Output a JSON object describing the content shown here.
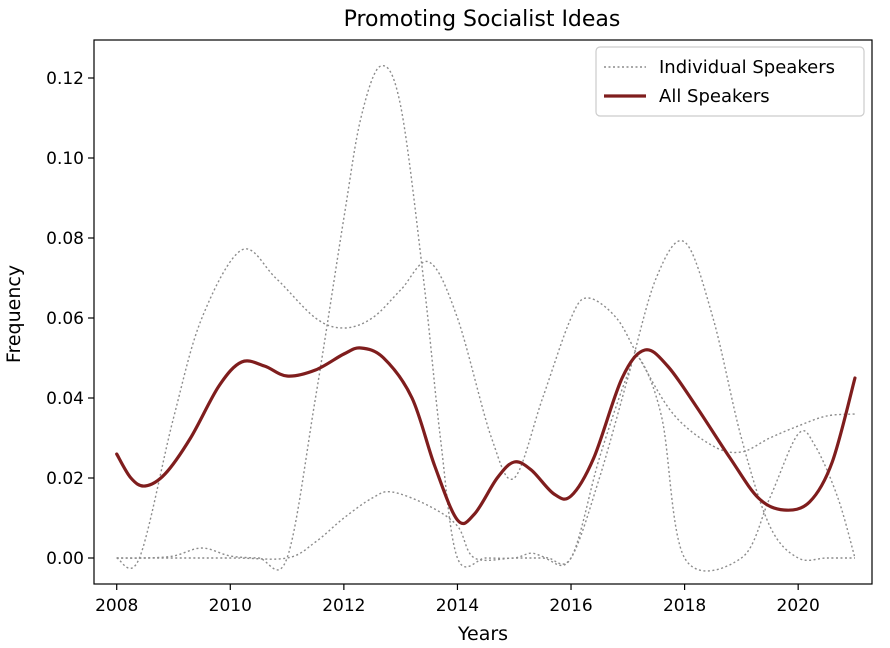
{
  "chart_data": {
    "type": "line",
    "title": "Promoting Socialist Ideas",
    "xlabel": "Years",
    "ylabel": "Frequency",
    "xlim": [
      2007.6,
      2021.3
    ],
    "ylim": [
      -0.0065,
      0.1295
    ],
    "xticks": [
      2008,
      2010,
      2012,
      2014,
      2016,
      2018,
      2020
    ],
    "xtick_labels": [
      "2008",
      "2010",
      "2012",
      "2014",
      "2016",
      "2018",
      "2020"
    ],
    "yticks": [
      0.0,
      0.02,
      0.04,
      0.06,
      0.08,
      0.1,
      0.12
    ],
    "ytick_labels": [
      "0.00",
      "0.02",
      "0.04",
      "0.06",
      "0.08",
      "0.10",
      "0.12"
    ],
    "grid": false,
    "legend": {
      "position": "top-right",
      "entries": [
        "Individual Speakers",
        "All Speakers"
      ]
    },
    "series": [
      {
        "name": "Individual Speakers",
        "style": "dotted",
        "color": "#8c8c8c",
        "points": [
          [
            2008,
            0.0
          ],
          [
            2008.5,
            0.0
          ],
          [
            2009,
            0.0005
          ],
          [
            2009.5,
            0.0025
          ],
          [
            2010,
            0.0005
          ],
          [
            2010.5,
            0.0
          ],
          [
            2011,
            0.0
          ],
          [
            2011.5,
            0.04
          ],
          [
            2012,
            0.085
          ],
          [
            2012.3,
            0.11
          ],
          [
            2012.65,
            0.123
          ],
          [
            2013,
            0.113
          ],
          [
            2013.4,
            0.07
          ],
          [
            2013.7,
            0.03
          ],
          [
            2014,
            0.0
          ],
          [
            2014.5,
            0.0
          ],
          [
            2015,
            0.0
          ],
          [
            2015.3,
            0.0012
          ],
          [
            2015.6,
            0.0
          ],
          [
            2016,
            0.0
          ],
          [
            2016.5,
            0.02
          ],
          [
            2017,
            0.045
          ],
          [
            2017.5,
            0.07
          ],
          [
            2018,
            0.079
          ],
          [
            2018.5,
            0.06
          ],
          [
            2019,
            0.03
          ],
          [
            2019.5,
            0.008
          ],
          [
            2020,
            0.0
          ],
          [
            2020.5,
            0.0
          ],
          [
            2021,
            0.0
          ]
        ]
      },
      {
        "name": "",
        "style": "dotted",
        "color": "#8c8c8c",
        "points": [
          [
            2008,
            0.0
          ],
          [
            2008.4,
            0.0
          ],
          [
            2009,
            0.035
          ],
          [
            2009.5,
            0.06
          ],
          [
            2010.2,
            0.077
          ],
          [
            2010.8,
            0.07
          ],
          [
            2011.5,
            0.06
          ],
          [
            2012,
            0.0575
          ],
          [
            2012.5,
            0.06
          ],
          [
            2013,
            0.067
          ],
          [
            2013.5,
            0.074
          ],
          [
            2014,
            0.06
          ],
          [
            2014.6,
            0.03
          ],
          [
            2015,
            0.02
          ],
          [
            2015.5,
            0.04
          ],
          [
            2016,
            0.06
          ],
          [
            2016.3,
            0.065
          ],
          [
            2016.8,
            0.06
          ],
          [
            2017.2,
            0.05
          ],
          [
            2017.8,
            0.036
          ],
          [
            2018.5,
            0.028
          ],
          [
            2019,
            0.0265
          ],
          [
            2019.5,
            0.03
          ],
          [
            2020,
            0.033
          ],
          [
            2020.5,
            0.0355
          ],
          [
            2021,
            0.036
          ]
        ]
      },
      {
        "name": "",
        "style": "dotted",
        "color": "#8c8c8c",
        "points": [
          [
            2008,
            0.0
          ],
          [
            2010,
            0.0
          ],
          [
            2011,
            0.0
          ],
          [
            2011.5,
            0.004
          ],
          [
            2012,
            0.01
          ],
          [
            2012.5,
            0.015
          ],
          [
            2012.85,
            0.0165
          ],
          [
            2013.5,
            0.013
          ],
          [
            2014,
            0.008
          ],
          [
            2014.3,
            0.0
          ],
          [
            2015,
            0.0
          ],
          [
            2015.5,
            0.0
          ],
          [
            2016,
            0.0
          ],
          [
            2016.5,
            0.025
          ],
          [
            2017,
            0.046
          ],
          [
            2017.2,
            0.05
          ],
          [
            2017.6,
            0.035
          ],
          [
            2018,
            0.0
          ],
          [
            2019,
            0.0
          ],
          [
            2019.5,
            0.015
          ],
          [
            2020,
            0.031
          ],
          [
            2020.3,
            0.028
          ],
          [
            2020.7,
            0.015
          ],
          [
            2021,
            0.0
          ]
        ]
      },
      {
        "name": "All Speakers",
        "style": "solid",
        "color": "#7f1d1d",
        "points": [
          [
            2008,
            0.026
          ],
          [
            2008.25,
            0.02
          ],
          [
            2008.5,
            0.018
          ],
          [
            2008.85,
            0.021
          ],
          [
            2009.3,
            0.03
          ],
          [
            2009.8,
            0.043
          ],
          [
            2010.2,
            0.049
          ],
          [
            2010.6,
            0.048
          ],
          [
            2011,
            0.0455
          ],
          [
            2011.5,
            0.047
          ],
          [
            2012,
            0.051
          ],
          [
            2012.3,
            0.0525
          ],
          [
            2012.7,
            0.05
          ],
          [
            2013.2,
            0.04
          ],
          [
            2013.6,
            0.023
          ],
          [
            2014,
            0.0095
          ],
          [
            2014.3,
            0.011
          ],
          [
            2014.7,
            0.02
          ],
          [
            2015,
            0.024
          ],
          [
            2015.3,
            0.022
          ],
          [
            2015.7,
            0.016
          ],
          [
            2016,
            0.0155
          ],
          [
            2016.4,
            0.025
          ],
          [
            2016.9,
            0.045
          ],
          [
            2017.3,
            0.052
          ],
          [
            2017.7,
            0.048
          ],
          [
            2018.2,
            0.038
          ],
          [
            2018.8,
            0.025
          ],
          [
            2019.3,
            0.015
          ],
          [
            2019.75,
            0.012
          ],
          [
            2020.2,
            0.014
          ],
          [
            2020.6,
            0.024
          ],
          [
            2021,
            0.045
          ]
        ]
      }
    ]
  }
}
